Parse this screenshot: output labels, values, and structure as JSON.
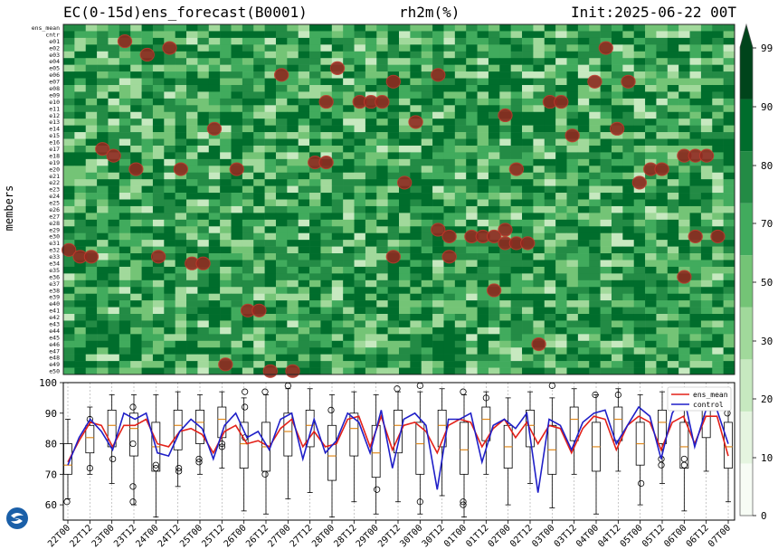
{
  "header": {
    "left": "EC(0-15d)ens_forecast(B0001)",
    "center": "rh2m(%)",
    "right": "Init:2025-06-22 00T"
  },
  "heatmap": {
    "ylabel": "members",
    "row_labels": [
      "ens_mean",
      "cntr",
      "e01",
      "e02",
      "e03",
      "e04",
      "e05",
      "e06",
      "e07",
      "e08",
      "e09",
      "e10",
      "e11",
      "e12",
      "e13",
      "e14",
      "e15",
      "e16",
      "e17",
      "e18",
      "e19",
      "e20",
      "e21",
      "e22",
      "e23",
      "e24",
      "e25",
      "e26",
      "e27",
      "e28",
      "e29",
      "e30",
      "e31",
      "e32",
      "e33",
      "e34",
      "e35",
      "e36",
      "e37",
      "e38",
      "e39",
      "e40",
      "e41",
      "e42",
      "e43",
      "e44",
      "e45",
      "e46",
      "e47",
      "e48",
      "e49",
      "e50"
    ],
    "columns": 60,
    "value_range": [
      60,
      99
    ],
    "highlight_color": "#c0392b"
  },
  "colorbar": {
    "ticks": [
      "0",
      "10",
      "20",
      "30",
      "50",
      "70",
      "80",
      "90",
      "99"
    ],
    "colors": [
      "#f7fcf5",
      "#e5f5e0",
      "#c7e9c0",
      "#a1d99b",
      "#74c476",
      "#41ab5d",
      "#238b45",
      "#006d2c",
      "#00441b"
    ]
  },
  "legend": {
    "items": [
      {
        "label": "ens_mean",
        "color": "#e32119"
      },
      {
        "label": "control",
        "color": "#1f1fc8"
      }
    ]
  },
  "chart_data": {
    "type": "line",
    "ylim": [
      55,
      100
    ],
    "yticks": [
      "60",
      "70",
      "80",
      "90",
      "100"
    ],
    "xtick_labels": [
      "22T00",
      "22T12",
      "23T00",
      "23T12",
      "24T00",
      "24T12",
      "25T00",
      "25T12",
      "26T00",
      "26T12",
      "27T00",
      "27T12",
      "28T00",
      "28T12",
      "29T00",
      "29T12",
      "30T00",
      "30T12",
      "01T00",
      "01T12",
      "02T00",
      "02T12",
      "03T00",
      "03T12",
      "04T00",
      "04T12",
      "05T00",
      "05T12",
      "06T00",
      "06T12",
      "07T00"
    ],
    "series": [
      {
        "name": "ens_mean",
        "values": [
          74,
          81,
          87,
          86,
          79,
          86,
          86,
          88,
          80,
          79,
          84,
          85,
          83,
          77,
          84,
          86,
          80,
          81,
          79,
          85,
          88,
          79,
          84,
          79,
          80,
          88,
          89,
          79,
          89,
          78,
          86,
          87,
          84,
          77,
          86,
          88,
          87,
          79,
          85,
          88,
          82,
          87,
          80,
          86,
          85,
          77,
          85,
          89,
          88,
          78,
          86,
          89,
          87,
          78,
          87,
          89,
          80,
          89,
          89,
          76
        ]
      },
      {
        "name": "control",
        "values": [
          73,
          82,
          88,
          84,
          78,
          90,
          88,
          90,
          77,
          76,
          84,
          88,
          85,
          75,
          86,
          90,
          82,
          84,
          78,
          88,
          90,
          75,
          88,
          77,
          81,
          90,
          87,
          77,
          91,
          72,
          88,
          90,
          86,
          65,
          88,
          88,
          90,
          74,
          86,
          88,
          85,
          90,
          64,
          88,
          86,
          78,
          87,
          90,
          91,
          80,
          86,
          92,
          89,
          75,
          90,
          96,
          79,
          91,
          91,
          80
        ]
      }
    ],
    "boxes": [
      {
        "q1": 70,
        "med": 73,
        "q3": 80,
        "lo": 62,
        "hi": 88
      },
      {
        "q1": 77,
        "med": 82,
        "q3": 86,
        "lo": 70,
        "hi": 92
      },
      {
        "q1": 79,
        "med": 86,
        "q3": 91,
        "lo": 67,
        "hi": 96
      },
      {
        "q1": 76,
        "med": 85,
        "q3": 90,
        "lo": 60,
        "hi": 96
      },
      {
        "q1": 71,
        "med": 79,
        "q3": 87,
        "lo": 56,
        "hi": 96
      },
      {
        "q1": 78,
        "med": 86,
        "q3": 91,
        "lo": 66,
        "hi": 97
      },
      {
        "q1": 80,
        "med": 87,
        "q3": 91,
        "lo": 70,
        "hi": 96
      },
      {
        "q1": 82,
        "med": 88,
        "q3": 92,
        "lo": 72,
        "hi": 97
      },
      {
        "q1": 72,
        "med": 80,
        "q3": 87,
        "lo": 58,
        "hi": 95
      },
      {
        "q1": 71,
        "med": 79,
        "q3": 87,
        "lo": 57,
        "hi": 96
      },
      {
        "q1": 76,
        "med": 84,
        "q3": 90,
        "lo": 62,
        "hi": 98
      },
      {
        "q1": 79,
        "med": 86,
        "q3": 91,
        "lo": 64,
        "hi": 98
      },
      {
        "q1": 68,
        "med": 76,
        "q3": 86,
        "lo": 56,
        "hi": 96
      },
      {
        "q1": 76,
        "med": 85,
        "q3": 90,
        "lo": 61,
        "hi": 97
      },
      {
        "q1": 69,
        "med": 77,
        "q3": 86,
        "lo": 57,
        "hi": 96
      },
      {
        "q1": 77,
        "med": 86,
        "q3": 91,
        "lo": 61,
        "hi": 97
      },
      {
        "q1": 70,
        "med": 80,
        "q3": 87,
        "lo": 57,
        "hi": 97
      },
      {
        "q1": 79,
        "med": 86,
        "q3": 91,
        "lo": 63,
        "hi": 98
      },
      {
        "q1": 70,
        "med": 78,
        "q3": 87,
        "lo": 56,
        "hi": 96
      },
      {
        "q1": 81,
        "med": 88,
        "q3": 92,
        "lo": 70,
        "hi": 97
      },
      {
        "q1": 72,
        "med": 79,
        "q3": 86,
        "lo": 60,
        "hi": 95
      },
      {
        "q1": 79,
        "med": 86,
        "q3": 91,
        "lo": 67,
        "hi": 97
      },
      {
        "q1": 70,
        "med": 78,
        "q3": 86,
        "lo": 59,
        "hi": 95
      },
      {
        "q1": 81,
        "med": 88,
        "q3": 92,
        "lo": 70,
        "hi": 98
      },
      {
        "q1": 71,
        "med": 79,
        "q3": 87,
        "lo": 57,
        "hi": 96
      },
      {
        "q1": 81,
        "med": 88,
        "q3": 92,
        "lo": 71,
        "hi": 98
      },
      {
        "q1": 73,
        "med": 80,
        "q3": 87,
        "lo": 60,
        "hi": 96
      },
      {
        "q1": 80,
        "med": 87,
        "q3": 91,
        "lo": 67,
        "hi": 97
      },
      {
        "q1": 72,
        "med": 79,
        "q3": 87,
        "lo": 58,
        "hi": 96
      },
      {
        "q1": 82,
        "med": 89,
        "q3": 92,
        "lo": 71,
        "hi": 98
      },
      {
        "q1": 72,
        "med": 79,
        "q3": 87,
        "lo": 61,
        "hi": 95
      }
    ]
  }
}
